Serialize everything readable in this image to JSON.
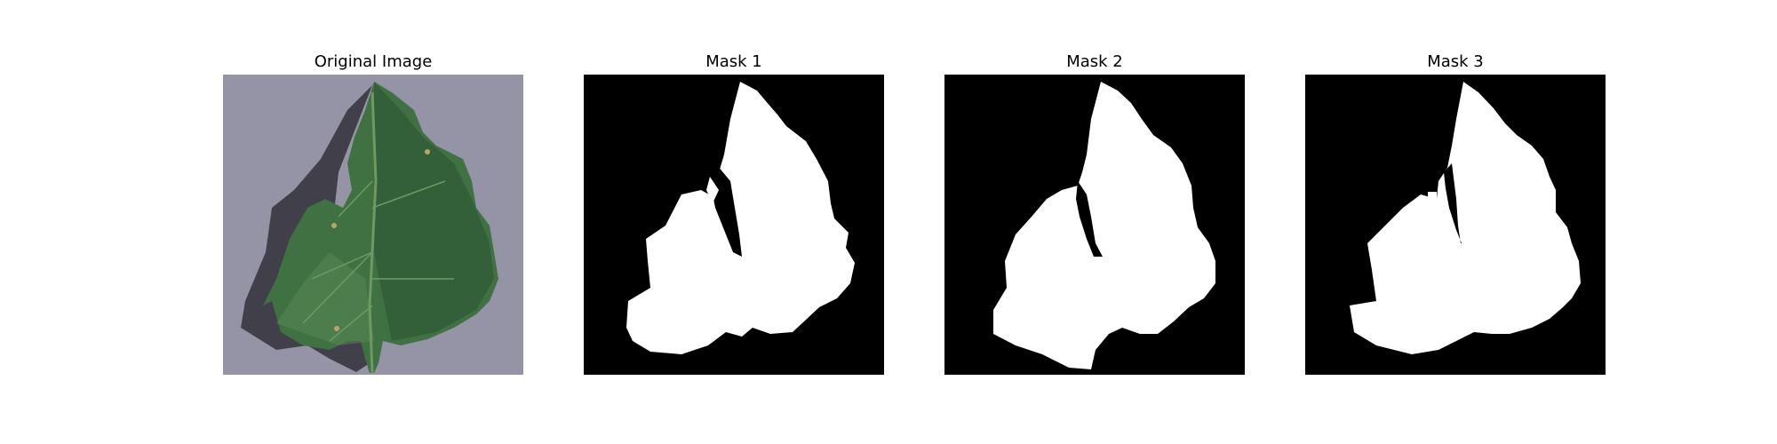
{
  "panels": [
    {
      "title": "Original Image",
      "kind": "photo",
      "subject": "leaf-photo"
    },
    {
      "title": "Mask 1",
      "kind": "mask"
    },
    {
      "title": "Mask 2",
      "kind": "mask"
    },
    {
      "title": "Mask 3",
      "kind": "mask"
    }
  ],
  "colors": {
    "background": "#ffffff",
    "mask_background": "#000000",
    "mask_foreground": "#ffffff",
    "photo_background": "#8e8c9f",
    "leaf_dark": "#2f5a34",
    "leaf_mid": "#3f7143",
    "leaf_light": "#5c8a57",
    "vein": "#6e9a62",
    "shadow": "#2a2a33"
  }
}
